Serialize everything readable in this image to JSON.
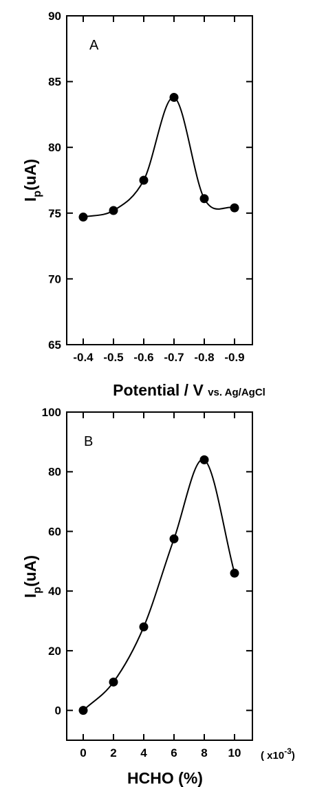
{
  "chart_data": [
    {
      "type": "line",
      "panel_label": "A",
      "x": [
        -0.4,
        -0.5,
        -0.6,
        -0.7,
        -0.8,
        -0.9
      ],
      "tick_labels_x": [
        "-0.4",
        "-0.5",
        "-0.6",
        "-0.7",
        "-0.8",
        "-0.9"
      ],
      "series": [
        {
          "values": [
            74.7,
            75.2,
            77.5,
            83.8,
            76.1,
            75.4
          ]
        }
      ],
      "ylim": [
        65,
        90
      ],
      "yticks": [
        "65",
        "70",
        "75",
        "80",
        "85",
        "90"
      ],
      "ylabel_main": "I",
      "ylabel_sub": "p",
      "ylabel_rest": "(uA)",
      "xlabel_main": "Potential / V",
      "xlabel_suffix": "vs. Ag/AgCl",
      "grid": false,
      "marker": "filled-circle",
      "line": "smooth"
    },
    {
      "type": "line",
      "panel_label": "B",
      "x": [
        0,
        2,
        4,
        6,
        8,
        10
      ],
      "tick_labels_x": [
        "0",
        "2",
        "4",
        "6",
        "8",
        "10"
      ],
      "series": [
        {
          "values": [
            0,
            9.5,
            28,
            57.5,
            84,
            46
          ]
        }
      ],
      "ylim": [
        -10,
        100
      ],
      "yticks": [
        "0",
        "20",
        "40",
        "60",
        "80",
        "100"
      ],
      "ylabel_main": "I",
      "ylabel_sub": "p",
      "ylabel_rest": "(uA)",
      "xlabel_main": "HCHO (%)",
      "x_multiplier_prefix": "( x10",
      "x_multiplier_exp": "-3",
      "x_multiplier_suffix": ")",
      "grid": false,
      "marker": "filled-circle",
      "line": "smooth"
    }
  ]
}
